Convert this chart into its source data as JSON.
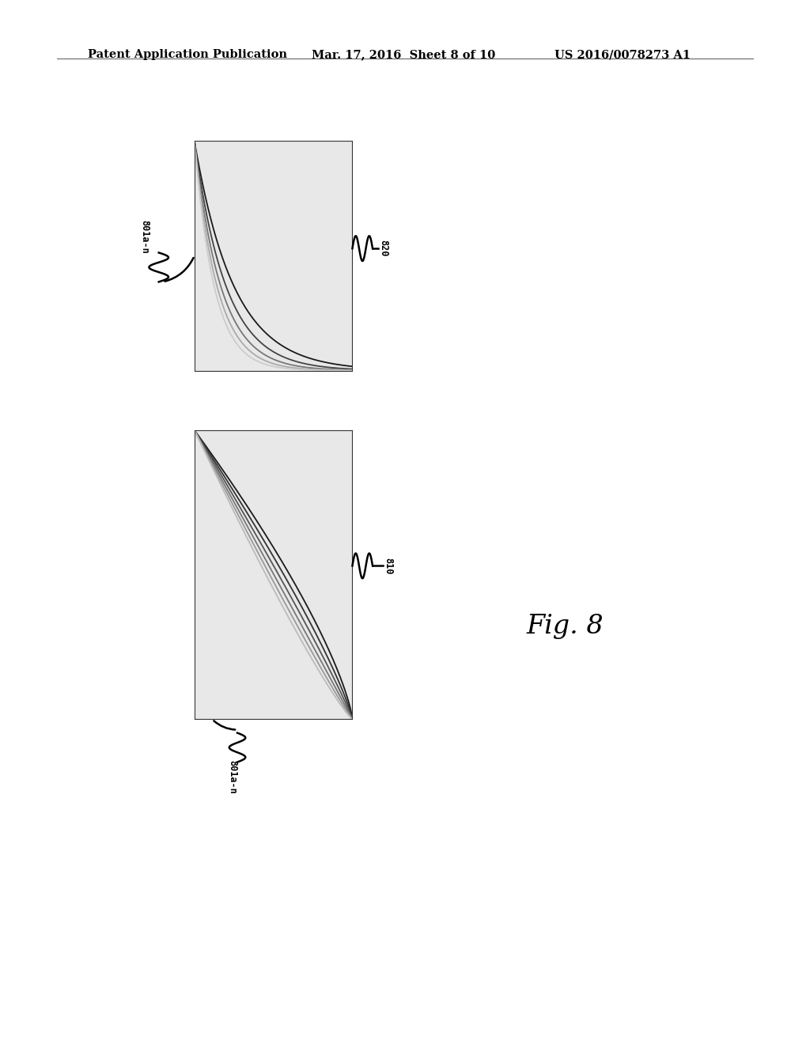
{
  "background_color": "#e8e8e8",
  "page_background": "#ffffff",
  "header_left": "Patent Application Publication",
  "header_center": "Mar. 17, 2016  Sheet 8 of 10",
  "header_right": "US 2016/0078273 A1",
  "header_fontsize": 10.5,
  "fig_label": "Fig. 8",
  "fig_label_fontsize": 24,
  "label_820": "820",
  "label_810": "810",
  "label_801_top": "801a-n",
  "label_801_bottom": "801a-n",
  "grid_color": "#b8b8b8",
  "line_colors_top": [
    "#1a1a1a",
    "#444444",
    "#777777",
    "#aaaaaa",
    "#cccccc"
  ],
  "line_colors_bot": [
    "#1a1a1a",
    "#333333",
    "#555555",
    "#777777",
    "#999999",
    "#bbbbbb"
  ],
  "curve_lw": 1.3
}
